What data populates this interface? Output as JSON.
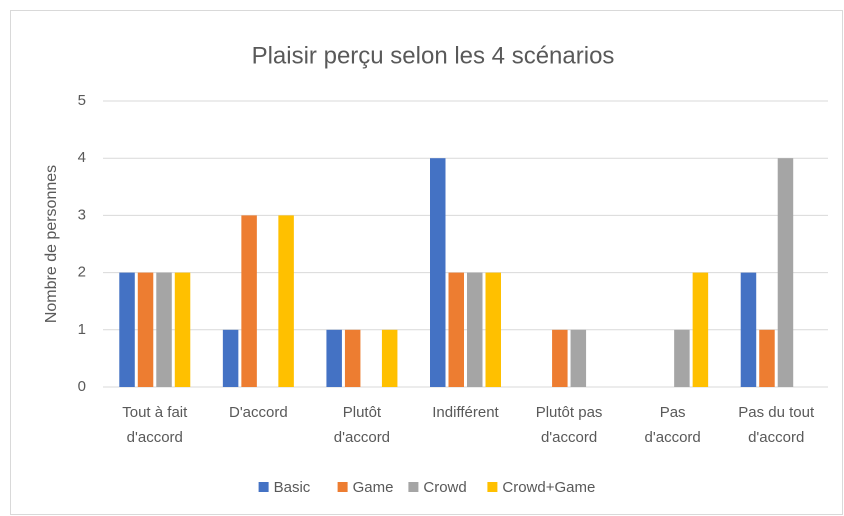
{
  "chart_data": {
    "type": "bar",
    "title": "Plaisir perçu selon les 4 scénarios",
    "y_label": "Nombre de personnes",
    "categories": [
      [
        "Tout à fait",
        "d'accord"
      ],
      [
        "D'accord"
      ],
      [
        "Plutôt",
        "d'accord"
      ],
      [
        "Indifférent"
      ],
      [
        "Plutôt pas",
        "d'accord"
      ],
      [
        "Pas",
        "d'accord"
      ],
      [
        "Pas du tout",
        "d'accord"
      ]
    ],
    "series": [
      {
        "name": "Basic",
        "color": "#4472c4",
        "values": [
          2,
          1,
          1,
          4,
          0,
          0,
          2
        ]
      },
      {
        "name": "Game",
        "color": "#ed7d31",
        "values": [
          2,
          3,
          1,
          2,
          1,
          0,
          1
        ]
      },
      {
        "name": "Crowd",
        "color": "#a5a5a5",
        "values": [
          2,
          0,
          0,
          2,
          1,
          1,
          4
        ]
      },
      {
        "name": "Crowd+Game",
        "color": "#ffc000",
        "values": [
          2,
          3,
          1,
          2,
          0,
          2,
          0
        ]
      }
    ],
    "ylim": [
      0,
      5
    ],
    "yticks": [
      0,
      1,
      2,
      3,
      4,
      5
    ],
    "grid": true,
    "legend": "bottom"
  }
}
